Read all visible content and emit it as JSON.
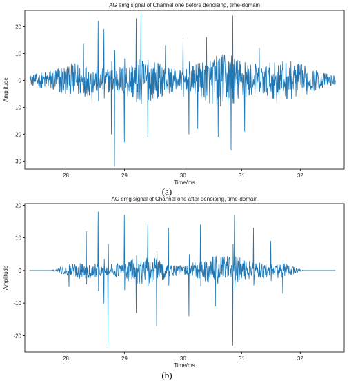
{
  "chart_data": [
    {
      "type": "line",
      "title": "AG emg signal of Channel one before denoising, time-domain",
      "xlabel": "Time/ms",
      "ylabel": "Amplitude",
      "xlim": [
        27.3,
        32.75
      ],
      "ylim": [
        -33,
        26
      ],
      "xticks": [
        28,
        29,
        30,
        31,
        32
      ],
      "yticks": [
        -30,
        -20,
        -10,
        0,
        10,
        20
      ],
      "series_color": "#1f77b4",
      "signal_range": [
        27.38,
        32.6
      ],
      "baseline_amplitude": 1.8,
      "peak_amplitude": 10,
      "spikes": [
        {
          "x": 28.05,
          "y": 5
        },
        {
          "x": 28.3,
          "y": 13.5
        },
        {
          "x": 28.45,
          "y": -9
        },
        {
          "x": 28.55,
          "y": 22
        },
        {
          "x": 28.65,
          "y": 19
        },
        {
          "x": 28.78,
          "y": -20
        },
        {
          "x": 28.83,
          "y": -32
        },
        {
          "x": 29.0,
          "y": -23
        },
        {
          "x": 29.2,
          "y": 23
        },
        {
          "x": 29.28,
          "y": 25
        },
        {
          "x": 29.4,
          "y": -21
        },
        {
          "x": 29.7,
          "y": 13
        },
        {
          "x": 30.0,
          "y": 17
        },
        {
          "x": 30.1,
          "y": -20
        },
        {
          "x": 30.25,
          "y": -18
        },
        {
          "x": 30.4,
          "y": 16
        },
        {
          "x": 30.6,
          "y": -21
        },
        {
          "x": 30.82,
          "y": -26
        },
        {
          "x": 30.85,
          "y": 24
        },
        {
          "x": 31.05,
          "y": -19
        },
        {
          "x": 31.3,
          "y": 12
        },
        {
          "x": 31.6,
          "y": -9
        }
      ]
    },
    {
      "type": "line",
      "title": "AG emg signal of Channel one after denoising, time-domain",
      "xlabel": "Time/ms",
      "ylabel": "Amplitude",
      "xlim": [
        27.3,
        32.75
      ],
      "ylim": [
        -25,
        20.5
      ],
      "xticks": [
        28,
        29,
        30,
        31,
        32
      ],
      "yticks": [
        -20,
        -10,
        0,
        10,
        20
      ],
      "series_color": "#1f77b4",
      "signal_range": [
        27.38,
        32.6
      ],
      "active_range": [
        27.75,
        32.05
      ],
      "baseline_amplitude": 0,
      "peak_amplitude": 7,
      "spikes": [
        {
          "x": 28.05,
          "y": -5
        },
        {
          "x": 28.35,
          "y": 12
        },
        {
          "x": 28.55,
          "y": 18
        },
        {
          "x": 28.65,
          "y": -10
        },
        {
          "x": 28.72,
          "y": -23
        },
        {
          "x": 29.0,
          "y": 17
        },
        {
          "x": 29.2,
          "y": -13
        },
        {
          "x": 29.4,
          "y": 14
        },
        {
          "x": 29.55,
          "y": -17
        },
        {
          "x": 29.75,
          "y": 13
        },
        {
          "x": 30.1,
          "y": -14
        },
        {
          "x": 30.3,
          "y": 14
        },
        {
          "x": 30.55,
          "y": -11
        },
        {
          "x": 30.85,
          "y": -23
        },
        {
          "x": 30.88,
          "y": 17
        },
        {
          "x": 31.2,
          "y": 13
        },
        {
          "x": 31.5,
          "y": 9
        },
        {
          "x": 31.7,
          "y": -7
        }
      ]
    }
  ],
  "captions": [
    "(a)",
    "(b)"
  ]
}
